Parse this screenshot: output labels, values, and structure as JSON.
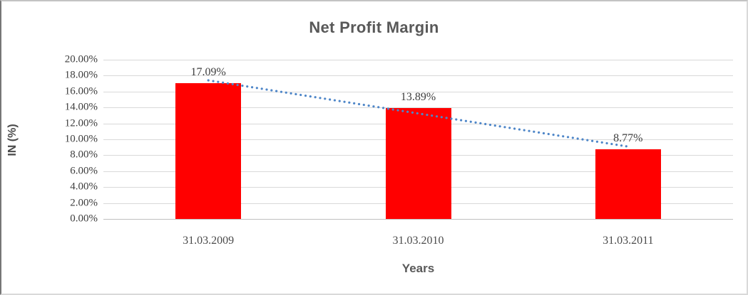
{
  "chart_data": {
    "type": "bar",
    "title": "Net Profit Margin",
    "xlabel": "Years",
    "ylabel": "IN (%)",
    "categories": [
      "31.03.2009",
      "31.03.2010",
      "31.03.2011"
    ],
    "values": [
      17.09,
      13.89,
      8.77
    ],
    "data_labels": [
      "17.09%",
      "13.89%",
      "8.77%"
    ],
    "ylim": [
      0,
      20
    ],
    "ytick_labels_top_to_bottom": [
      "20.00%",
      "18.00%",
      "16.00%",
      "14.00%",
      "12.00%",
      "10.00%",
      "8.00%",
      "6.00%",
      "4.00%",
      "2.00%",
      "0.00%"
    ],
    "grid": "horizontal",
    "legend": "none",
    "has_linear_trendline": true,
    "colors": {
      "bar": "#ff0000",
      "trendline": "#4e86c8",
      "gridline": "#d9d9d9",
      "axis_line": "#bfbfbf",
      "title_text": "#595959",
      "tick_text": "#3d3d3d"
    }
  }
}
